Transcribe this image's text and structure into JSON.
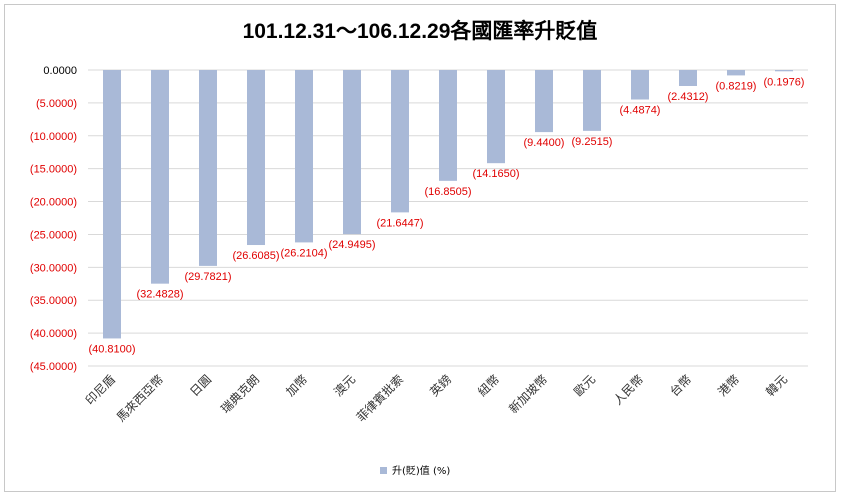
{
  "chart_data": {
    "type": "bar",
    "title": "101.12.31～106.12.29各國匯率升貶值",
    "categories": [
      "印尼盾",
      "馬來西亞幣",
      "日圓",
      "瑞典克朗",
      "加幣",
      "澳元",
      "菲律賓批索",
      "英鎊",
      "紐幣",
      "新加坡幣",
      "歐元",
      "人民幣",
      "台幣",
      "港幣",
      "韓元"
    ],
    "series": [
      {
        "name": "升(貶)值 (%)",
        "values": [
          -40.81,
          -32.4828,
          -29.7821,
          -26.6085,
          -26.2104,
          -24.9495,
          -21.6447,
          -16.8505,
          -14.165,
          -9.44,
          -9.2515,
          -4.4874,
          -2.4312,
          -0.8219,
          -0.1976
        ]
      }
    ],
    "data_labels": [
      "(40.8100)",
      "(32.4828)",
      "(29.7821)",
      "(26.6085)",
      "(26.2104)",
      "(24.9495)",
      "(21.6447)",
      "(16.8505)",
      "(14.1650)",
      "(9.4400)",
      "(9.2515)",
      "(4.4874)",
      "(2.4312)",
      "(0.8219)",
      "(0.1976)"
    ],
    "y_tick_values": [
      0,
      -5,
      -10,
      -15,
      -20,
      -25,
      -30,
      -35,
      -40,
      -45
    ],
    "y_tick_labels": [
      "0.0000",
      "(5.0000)",
      "(10.0000)",
      "(15.0000)",
      "(20.0000)",
      "(25.0000)",
      "(30.0000)",
      "(35.0000)",
      "(40.0000)",
      "(45.0000)"
    ],
    "ylim": [
      -45,
      0
    ],
    "xlabel": "",
    "ylabel": "",
    "grid": true,
    "legend_position": "bottom",
    "colors": {
      "bar": "#a9b9d7",
      "negative_text": "#e00000",
      "zero_text": "#000000",
      "grid": "#d9d9d9"
    }
  }
}
